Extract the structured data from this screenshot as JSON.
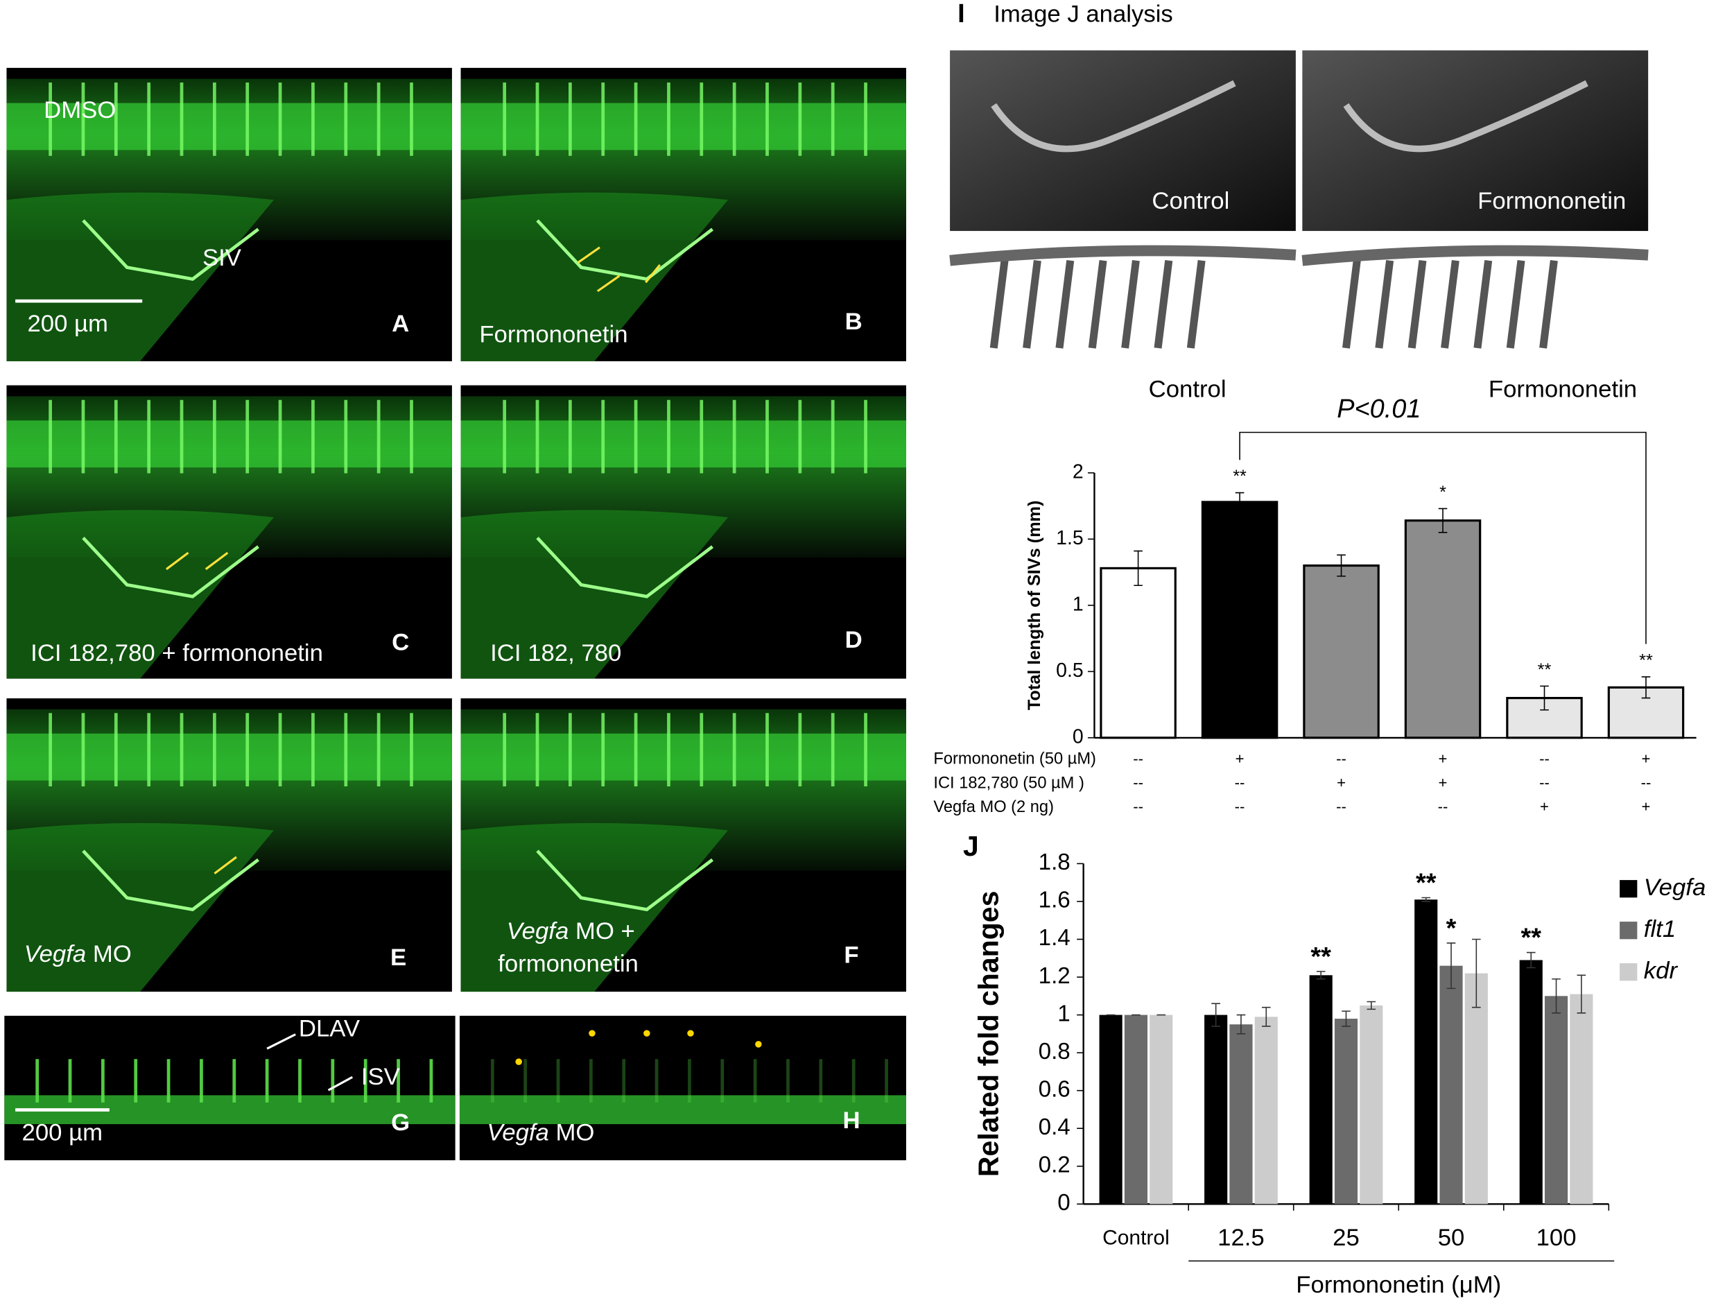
{
  "panels": [
    {
      "letter": "A",
      "labels": [
        {
          "text": "DMSO"
        },
        {
          "text": "SIV"
        },
        {
          "text": "200 µm"
        }
      ]
    },
    {
      "letter": "B",
      "labels": [
        {
          "text": "Formononetin"
        }
      ]
    },
    {
      "letter": "C",
      "labels": [
        {
          "text": "ICI 182,780 + formononetin"
        }
      ]
    },
    {
      "letter": "D",
      "labels": [
        {
          "text": "ICI 182, 780"
        }
      ]
    },
    {
      "letter": "E",
      "labels": [
        {
          "italic": "Vegfa",
          "text": " MO"
        }
      ]
    },
    {
      "letter": "F",
      "labels": [
        {
          "italic": "Vegfa",
          "text": " MO +"
        },
        {
          "text": "formononetin"
        }
      ]
    },
    {
      "letter": "G",
      "labels": [
        {
          "text": "DLAV"
        },
        {
          "text": "ISV"
        },
        {
          "text": "200 µm"
        }
      ]
    },
    {
      "letter": "H",
      "labels": [
        {
          "italic": "Vegfa",
          "text": " MO"
        }
      ]
    }
  ],
  "image_j": {
    "letter": "I",
    "title": "Image J analysis",
    "images": [
      {
        "caption": "Control"
      },
      {
        "caption": "Formononetin"
      },
      {
        "caption": "Control"
      },
      {
        "caption": "Formononetin"
      }
    ]
  },
  "chart_data": [
    {
      "type": "bar",
      "ylabel": "Total length of SIVs (mm)",
      "categories": [
        null,
        null,
        null,
        null,
        null,
        null
      ],
      "values": [
        1.28,
        1.78,
        1.3,
        1.64,
        0.3,
        0.38
      ],
      "errors": [
        0.13,
        0.07,
        0.08,
        0.09,
        0.09,
        0.08
      ],
      "colors": [
        "#ffffff",
        "#000000",
        "#8c8c8c",
        "#8c8c8c",
        "#e6e6e6",
        "#e6e6e6"
      ],
      "significance": [
        null,
        "**",
        null,
        "*",
        "**",
        "**"
      ],
      "annotation": "P<0.01",
      "conditions": [
        {
          "name": "Formononetin  (50 µM)",
          "marks": [
            "--",
            "+",
            "--",
            "+",
            "--",
            "+"
          ]
        },
        {
          "name": "ICI 182,780 (50 µM )",
          "marks": [
            "--",
            "--",
            "+",
            "+",
            "--",
            "--"
          ]
        },
        {
          "name": "Vegfa MO (2 ng)",
          "marks": [
            "--",
            "--",
            "--",
            "--",
            "+",
            "+"
          ]
        }
      ],
      "ylim": [
        0,
        2
      ],
      "yticks": [
        0,
        0.5,
        1,
        1.5,
        2
      ]
    },
    {
      "type": "grouped_bar",
      "panel": "J",
      "ylabel": "Related fold changes",
      "xlabel": "Formononetin (μM)",
      "categories": [
        "Control",
        "12.5",
        "25",
        "50",
        "100"
      ],
      "series": [
        {
          "name": "Vegfa",
          "color": "#000000",
          "values": [
            1.0,
            1.0,
            1.21,
            1.61,
            1.29
          ],
          "errors": [
            0,
            0.06,
            0.02,
            0.01,
            0.04
          ],
          "significance": [
            null,
            null,
            "**",
            "**",
            "**"
          ]
        },
        {
          "name": "flt1",
          "color": "#6b6b6b",
          "values": [
            1.0,
            0.95,
            0.98,
            1.26,
            1.1
          ],
          "errors": [
            0,
            0.05,
            0.04,
            0.12,
            0.09
          ],
          "significance": [
            null,
            null,
            null,
            "*",
            null
          ]
        },
        {
          "name": "kdr",
          "color": "#cccccc",
          "values": [
            1.0,
            0.99,
            1.05,
            1.22,
            1.11
          ],
          "errors": [
            0,
            0.05,
            0.02,
            0.18,
            0.1
          ],
          "significance": [
            null,
            null,
            null,
            null,
            null
          ]
        }
      ],
      "ylim": [
        0,
        1.8
      ],
      "yticks": [
        0,
        0.2,
        0.4,
        0.6,
        0.8,
        1,
        1.2,
        1.4,
        1.6,
        1.8
      ]
    }
  ]
}
